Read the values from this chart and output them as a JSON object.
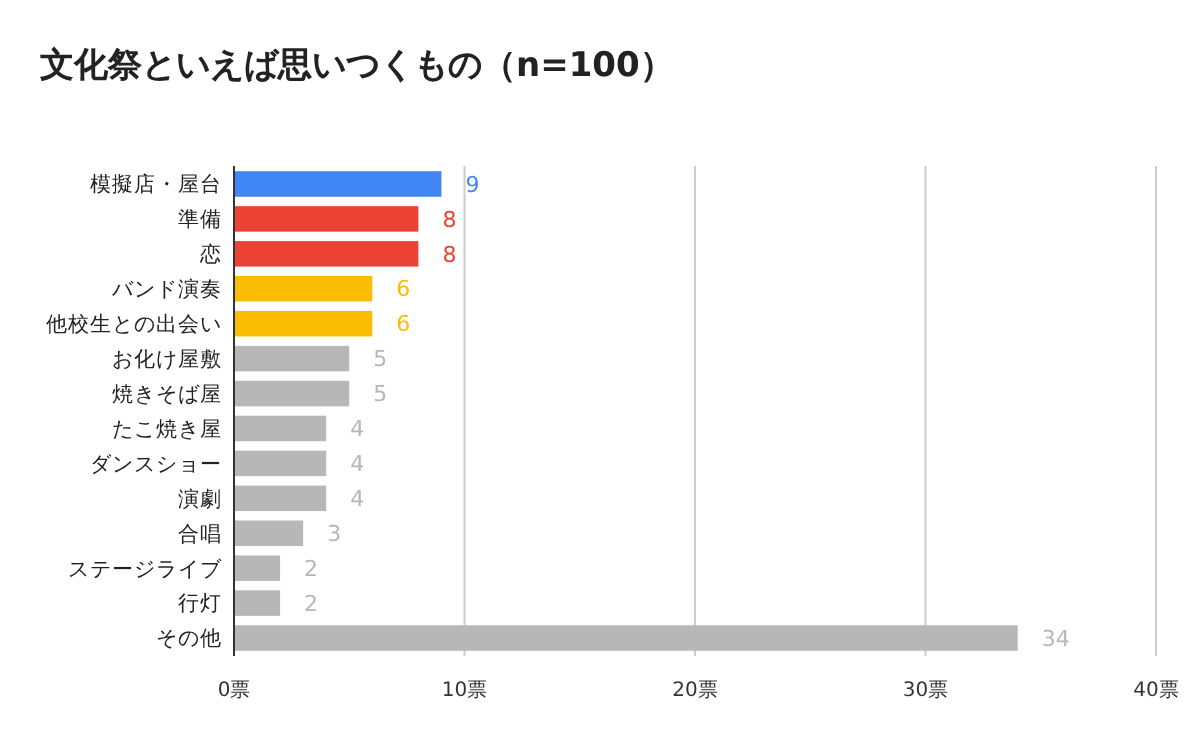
{
  "chart_data": {
    "type": "bar",
    "orientation": "horizontal",
    "title": "文化祭といえば思いつくもの（n=100）",
    "categories": [
      "模擬店・屋台",
      "準備",
      "恋",
      "バンド演奏",
      "他校生との出会い",
      "お化け屋敷",
      "焼きそば屋",
      "たこ焼き屋",
      "ダンスショー",
      "演劇",
      "合唱",
      "ステージライブ",
      "行灯",
      "その他"
    ],
    "values": [
      9,
      8,
      8,
      6,
      6,
      5,
      5,
      4,
      4,
      4,
      3,
      2,
      2,
      34
    ],
    "colors": [
      "#4285f4",
      "#ea4335",
      "#ea4335",
      "#fbbc04",
      "#fbbc04",
      "#b7b7b7",
      "#b7b7b7",
      "#b7b7b7",
      "#b7b7b7",
      "#b7b7b7",
      "#b7b7b7",
      "#b7b7b7",
      "#b7b7b7",
      "#b7b7b7"
    ],
    "xlim": [
      0,
      40
    ],
    "xticks": [
      {
        "value": 0,
        "label": "0票"
      },
      {
        "value": 10,
        "label": "10票"
      },
      {
        "value": 20,
        "label": "20票"
      },
      {
        "value": 30,
        "label": "30票"
      },
      {
        "value": 40,
        "label": "40票"
      }
    ],
    "grid": "x",
    "data_labels": true
  }
}
